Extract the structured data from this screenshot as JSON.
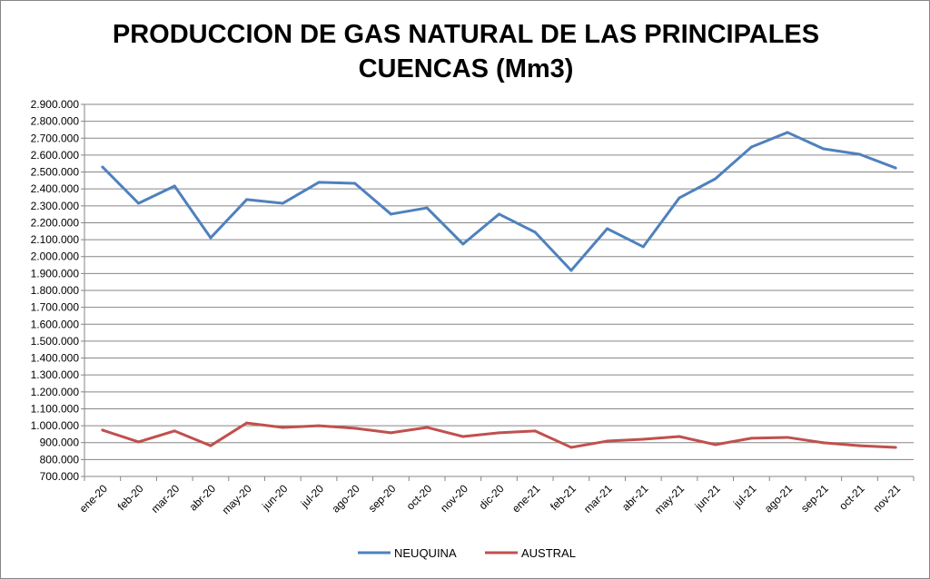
{
  "chart_data": {
    "type": "line",
    "title": "PRODUCCION DE GAS NATURAL DE LAS PRINCIPALES CUENCAS (Mm3)",
    "title_lines": [
      "PRODUCCION DE GAS NATURAL DE LAS PRINCIPALES",
      "CUENCAS (Mm3)"
    ],
    "xlabel": "",
    "ylabel": "",
    "ylim": [
      700000,
      2900000
    ],
    "ytick_step": 100000,
    "grid": true,
    "legend_position": "bottom",
    "categories": [
      "ene-20",
      "feb-20",
      "mar-20",
      "abr-20",
      "may-20",
      "jun-20",
      "jul-20",
      "ago-20",
      "sep-20",
      "oct-20",
      "nov-20",
      "dic-20",
      "ene-21",
      "feb-21",
      "mar-21",
      "abr-21",
      "may-21",
      "jun-21",
      "jul-21",
      "ago-21",
      "sep-21",
      "oct-21",
      "nov-21"
    ],
    "series": [
      {
        "name": "NEUQUINA",
        "color": "#4F81BD",
        "values": [
          2530000,
          2315000,
          2417000,
          2111000,
          2337000,
          2315000,
          2439000,
          2433000,
          2251000,
          2288000,
          2074000,
          2251000,
          2144000,
          1918000,
          2165000,
          2058000,
          2347000,
          2460000,
          2648000,
          2734000,
          2637000,
          2605000,
          2524000
        ]
      },
      {
        "name": "AUSTRAL",
        "color": "#C0504D",
        "values": [
          974000,
          904000,
          969000,
          882000,
          1016000,
          990000,
          1000000,
          985000,
          958000,
          990000,
          936000,
          958000,
          969000,
          872000,
          909000,
          920000,
          936000,
          888000,
          926000,
          931000,
          899000,
          882000,
          872000
        ]
      }
    ]
  }
}
